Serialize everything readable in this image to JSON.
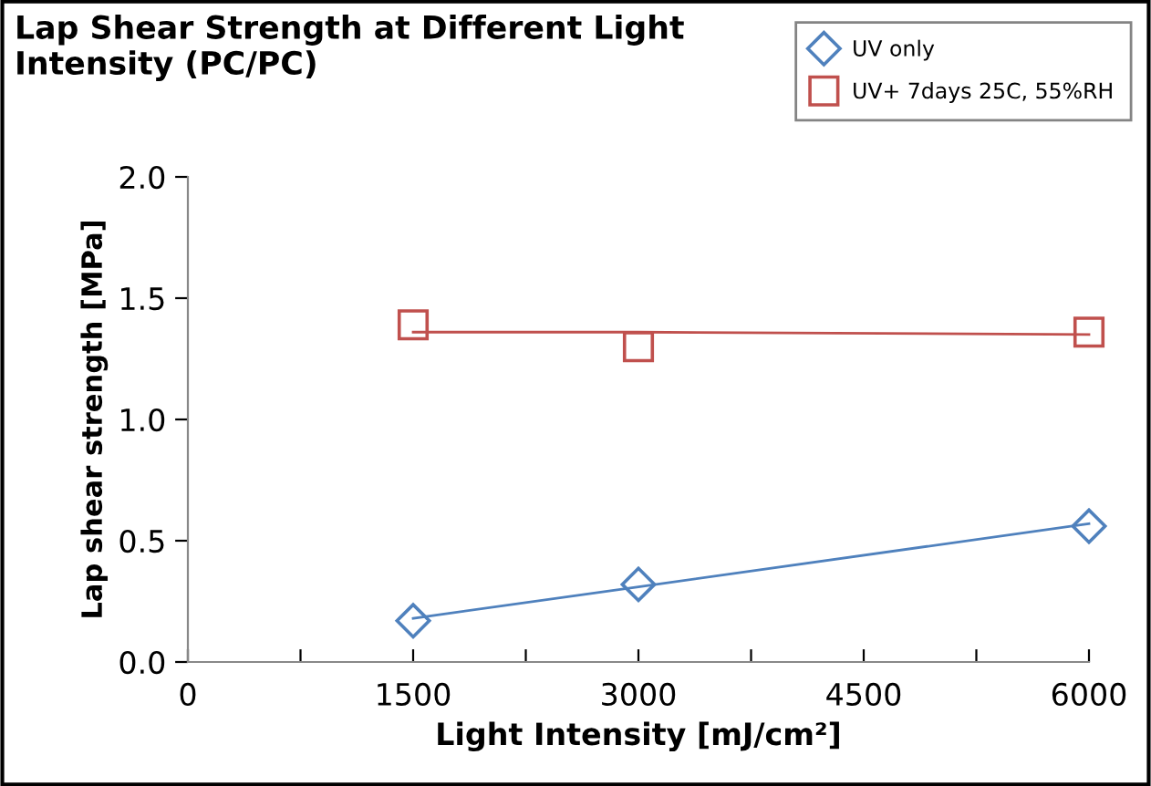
{
  "chart_data": {
    "type": "scatter",
    "title": "Lap Shear Strength at Different Light\nIntensity (PC/PC)",
    "xlabel": "Light Intensity [mJ/cm²]",
    "ylabel": "Lap shear strength [MPa]",
    "x": [
      1500,
      3000,
      6000
    ],
    "series": [
      {
        "name": "UV only",
        "color": "#4f81bd",
        "values": [
          0.17,
          0.32,
          0.56
        ],
        "marker": "diamond"
      },
      {
        "name": "UV+ 7days 25C, 55%RH",
        "color": "#c0504d",
        "values": [
          1.39,
          1.3,
          1.36
        ],
        "marker": "square"
      },
      {
        "type": "line",
        "color": "#4f81bd",
        "values": [
          0.18,
          0.31,
          0.57
        ],
        "marker": "none"
      },
      {
        "type": "line",
        "color": "#c0504d",
        "values": [
          1.36,
          1.36,
          1.35
        ],
        "marker": "none"
      }
    ],
    "xlim": [
      0,
      6000
    ],
    "xticks": [
      0,
      {
        "value": 750,
        "label": null
      },
      1500,
      {
        "value": 2250,
        "label": null
      },
      3000,
      {
        "value": 3750,
        "label": null
      },
      4500,
      {
        "value": 5250,
        "label": null
      },
      6000
    ],
    "ylim": [
      0,
      2.0
    ],
    "yticks": [
      {
        "value": 0,
        "label": "0.0"
      },
      {
        "value": 0.5,
        "label": "0.5"
      },
      {
        "value": 1.0,
        "label": "1.0"
      },
      {
        "value": 1.5,
        "label": "1.5"
      },
      {
        "value": 2.0,
        "label": "2.0"
      }
    ],
    "grid": false,
    "legend": "top right"
  }
}
